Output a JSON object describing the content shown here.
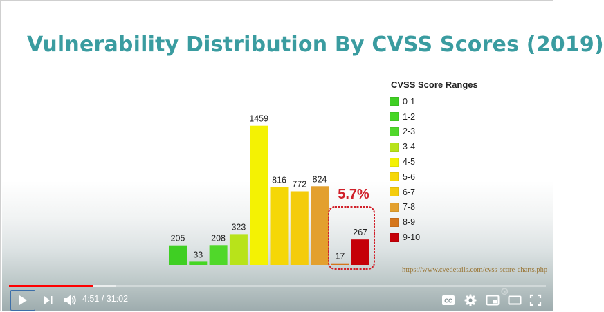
{
  "slide": {
    "title": "Vulnerability Distribution By CVSS Scores (2019)",
    "source_link": "https://www.cvedetails.com/cvss-score-charts.php",
    "callout_text": "5.7%",
    "colors": {
      "title": "#3a9ca0",
      "callout": "#d0202a"
    }
  },
  "chart_data": {
    "type": "bar",
    "title": "",
    "xlabel": "",
    "ylabel": "",
    "legend_title": "CVSS Score Ranges",
    "legend_position": "right",
    "grid": false,
    "categories": [
      "0-1",
      "1-2",
      "2-3",
      "3-4",
      "4-5",
      "5-6",
      "6-7",
      "7-8",
      "8-9",
      "9-10"
    ],
    "values": [
      205,
      33,
      208,
      323,
      1459,
      816,
      772,
      824,
      17,
      267
    ],
    "colors": [
      "#3fcf23",
      "#46d624",
      "#50d82a",
      "#b8e31a",
      "#f4f203",
      "#f5d707",
      "#f4cc0c",
      "#e3a02e",
      "#d4751a",
      "#c50008"
    ],
    "highlight_categories": [
      "8-9",
      "9-10"
    ],
    "ylim": [
      0,
      1500
    ]
  },
  "player": {
    "current_time": "4:51",
    "duration": "31:02",
    "time_separator": " / ",
    "played_fraction": 0.156,
    "buffered_fraction": 0.198,
    "icons": {
      "play": "play-icon",
      "next": "skip-next-icon",
      "volume": "volume-icon",
      "captions": "captions-icon",
      "settings": "gear-icon",
      "miniplayer": "miniplayer-icon",
      "theater": "theater-icon",
      "fullscreen": "fullscreen-icon"
    }
  }
}
